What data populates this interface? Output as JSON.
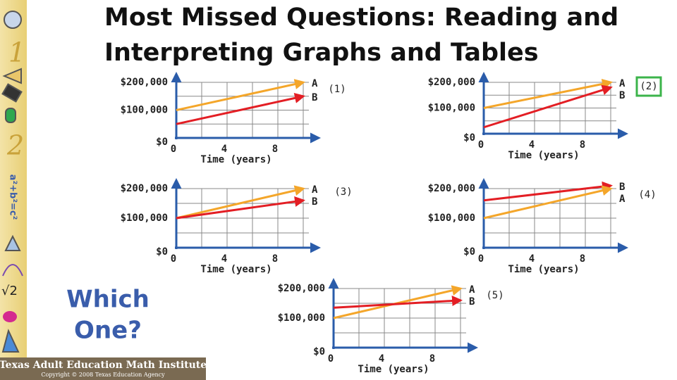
{
  "title": "Most Missed Questions: Reading and Interpreting Graphs and Tables",
  "question": [
    "Which",
    "One?"
  ],
  "footer": {
    "name": "Texas Adult Education Math Institute",
    "copyright": "Copyright © 2008 Texas Education Agency"
  },
  "chart_data": [
    {
      "type": "line",
      "label": "(1)",
      "highlighted": false,
      "colored_names": false,
      "xlabel": "Time (years)",
      "x": [
        0,
        10
      ],
      "xlim": [
        0,
        10
      ],
      "xticks": [
        0,
        {
          "value": 2,
          "label": null
        },
        4,
        {
          "value": 6,
          "label": null
        },
        8,
        {
          "value": 10,
          "label": null
        }
      ],
      "ylim": [
        0,
        200000
      ],
      "yticks": [
        {
          "value": 0,
          "label": "$0"
        },
        {
          "value": 50000,
          "label": null
        },
        {
          "value": 100000,
          "label": "$100,000"
        },
        {
          "value": 150000,
          "label": null
        },
        {
          "value": 200000,
          "label": "$200,000"
        }
      ],
      "series": [
        {
          "name": "A",
          "color": "#f4a62a",
          "values": [
            100000,
            200000
          ]
        },
        {
          "name": "B",
          "color": "#e31e24",
          "values": [
            50000,
            150000
          ]
        }
      ]
    },
    {
      "type": "line",
      "label": "(2)",
      "highlighted": true,
      "colored_names": false,
      "xlabel": "Time (years)",
      "x": [
        0,
        10
      ],
      "xlim": [
        0,
        10
      ],
      "xticks": [
        0,
        {
          "value": 2,
          "label": null
        },
        4,
        {
          "value": 6,
          "label": null
        },
        8,
        {
          "value": 10,
          "label": null
        }
      ],
      "ylim": [
        0,
        200000
      ],
      "yticks": [
        {
          "value": 0,
          "label": "$0"
        },
        {
          "value": 50000,
          "label": null
        },
        {
          "value": 100000,
          "label": "$100,000"
        },
        {
          "value": 150000,
          "label": null
        },
        {
          "value": 200000,
          "label": "$200,000"
        }
      ],
      "series": [
        {
          "name": "A",
          "color": "#f4a62a",
          "values": [
            100000,
            200000
          ]
        },
        {
          "name": "B",
          "color": "#e31e24",
          "values": [
            25000,
            180000
          ]
        }
      ]
    },
    {
      "type": "line",
      "label": "(3)",
      "highlighted": false,
      "colored_names": false,
      "xlabel": "Time (years)",
      "x": [
        0,
        10
      ],
      "xlim": [
        0,
        10
      ],
      "xticks": [
        0,
        {
          "value": 2,
          "label": null
        },
        4,
        {
          "value": 6,
          "label": null
        },
        8,
        {
          "value": 10,
          "label": null
        }
      ],
      "ylim": [
        0,
        200000
      ],
      "yticks": [
        {
          "value": 0,
          "label": "$0"
        },
        {
          "value": 50000,
          "label": null
        },
        {
          "value": 100000,
          "label": "$100,000"
        },
        {
          "value": 150000,
          "label": null
        },
        {
          "value": 200000,
          "label": "$200,000"
        }
      ],
      "series": [
        {
          "name": "A",
          "color": "#f4a62a",
          "values": [
            100000,
            200000
          ]
        },
        {
          "name": "B",
          "color": "#e31e24",
          "values": [
            100000,
            160000
          ]
        }
      ]
    },
    {
      "type": "line",
      "label": "(4)",
      "highlighted": false,
      "colored_names": true,
      "xlabel": "Time (years)",
      "x": [
        0,
        10
      ],
      "xlim": [
        0,
        10
      ],
      "xticks": [
        0,
        {
          "value": 2,
          "label": null
        },
        4,
        {
          "value": 6,
          "label": null
        },
        8,
        {
          "value": 10,
          "label": null
        }
      ],
      "ylim": [
        0,
        200000
      ],
      "yticks": [
        {
          "value": 0,
          "label": "$0"
        },
        {
          "value": 50000,
          "label": null
        },
        {
          "value": 100000,
          "label": "$100,000"
        },
        {
          "value": 150000,
          "label": null
        },
        {
          "value": 200000,
          "label": "$200,000"
        }
      ],
      "series": [
        {
          "name": "B",
          "color": "#e31e24",
          "values": [
            160000,
            210000
          ]
        },
        {
          "name": "A",
          "color": "#f4a62a",
          "values": [
            100000,
            200000
          ]
        }
      ]
    },
    {
      "type": "line",
      "label": "(5)",
      "highlighted": false,
      "colored_names": true,
      "xlabel": "Time (years)",
      "x": [
        0,
        10
      ],
      "xlim": [
        0,
        10
      ],
      "xticks": [
        0,
        {
          "value": 2,
          "label": null
        },
        4,
        {
          "value": 6,
          "label": null
        },
        8,
        {
          "value": 10,
          "label": null
        }
      ],
      "ylim": [
        0,
        200000
      ],
      "yticks": [
        {
          "value": 0,
          "label": "$0"
        },
        {
          "value": 50000,
          "label": null
        },
        {
          "value": 100000,
          "label": "$100,000"
        },
        {
          "value": 150000,
          "label": null
        },
        {
          "value": 200000,
          "label": "$200,000"
        }
      ],
      "series": [
        {
          "name": "A",
          "color": "#f4a62a",
          "values": [
            100000,
            200000
          ]
        },
        {
          "name": "B",
          "color": "#e31e24",
          "values": [
            135000,
            160000
          ]
        }
      ]
    }
  ]
}
